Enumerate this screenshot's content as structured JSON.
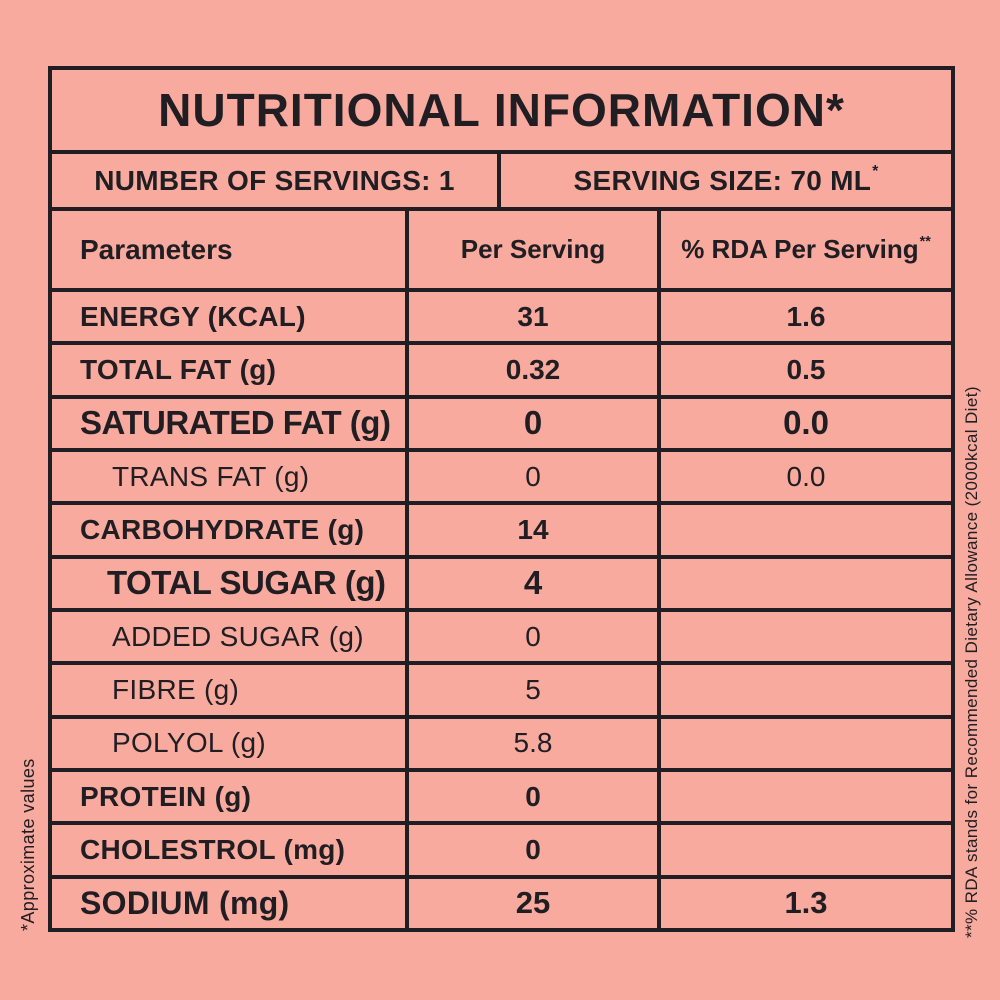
{
  "colors": {
    "background": "#f7aa9d",
    "ink": "#201d23"
  },
  "label": {
    "title": "NUTRITIONAL INFORMATION*",
    "servings": "NUMBER OF SERVINGS: 1",
    "serving_size": {
      "text": "SERVING SIZE: 70 ML",
      "sup": "*"
    },
    "columns": {
      "parameters": "Parameters",
      "per_serving": "Per Serving",
      "rda": {
        "text": "% RDA Per Serving",
        "sup": "**"
      }
    },
    "rows": [
      {
        "label": "ENERGY (KCAL)",
        "per_serving": "31",
        "rda": "1.6",
        "emphasis": "bold",
        "indent": false
      },
      {
        "label": "TOTAL FAT (g)",
        "per_serving": "0.32",
        "rda": "0.5",
        "emphasis": "bold",
        "indent": false
      },
      {
        "label": "SATURATED FAT (g)",
        "per_serving": "0",
        "rda": "0.0",
        "emphasis": "bold-xl",
        "indent": false
      },
      {
        "label": "TRANS FAT (g)",
        "per_serving": "0",
        "rda": "0.0",
        "emphasis": "light",
        "indent": true
      },
      {
        "label": "CARBOHYDRATE (g)",
        "per_serving": "14",
        "rda": "",
        "emphasis": "bold",
        "indent": false
      },
      {
        "label": "TOTAL SUGAR (g)",
        "per_serving": "4",
        "rda": "",
        "emphasis": "bold-xl",
        "indent": true
      },
      {
        "label": "ADDED SUGAR (g)",
        "per_serving": "0",
        "rda": "",
        "emphasis": "light",
        "indent": true
      },
      {
        "label": "FIBRE (g)",
        "per_serving": "5",
        "rda": "",
        "emphasis": "light",
        "indent": true
      },
      {
        "label": "POLYOL (g)",
        "per_serving": "5.8",
        "rda": "",
        "emphasis": "light",
        "indent": true
      },
      {
        "label": "PROTEIN (g)",
        "per_serving": "0",
        "rda": "",
        "emphasis": "bold",
        "indent": false
      },
      {
        "label": "CHOLESTROL (mg)",
        "per_serving": "0",
        "rda": "",
        "emphasis": "bold",
        "indent": false
      },
      {
        "label": "SODIUM (mg)",
        "per_serving": "25",
        "rda": "1.3",
        "emphasis": "bold-lg",
        "indent": false
      }
    ],
    "footnote_left": "*Approximate values",
    "footnote_right": "**% RDA stands for Recommended Dietary Allowance (2000kcal Diet)"
  }
}
